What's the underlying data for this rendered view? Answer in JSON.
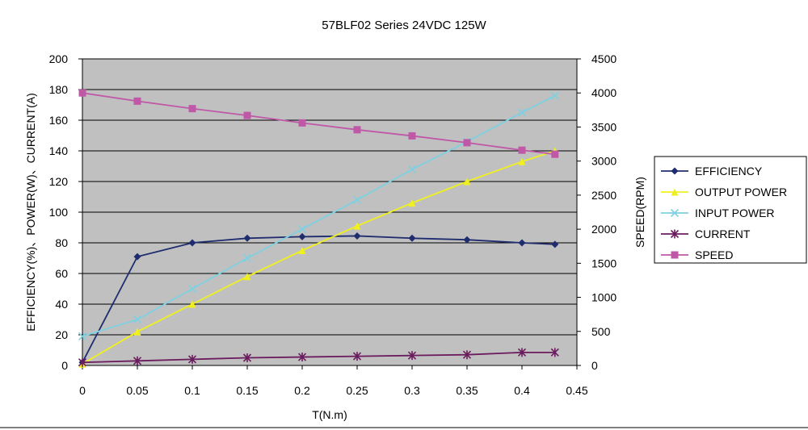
{
  "chart_data": {
    "type": "line",
    "title": "57BLF02 Series 24VDC 125W",
    "xlabel": "T(N.m)",
    "ylabel_left": "EFFICIENCY(%)、POWER(W)、CURRENT(A)",
    "ylabel_right": "SPEED(RPM)",
    "xlim": [
      0,
      0.45
    ],
    "ylim_left": [
      0,
      200
    ],
    "ylim_right": [
      0,
      4500
    ],
    "x_ticks": [
      "0",
      "0.05",
      "0.1",
      "0.15",
      "0.2",
      "0.25",
      "0.3",
      "0.35",
      "0.4",
      "0.45"
    ],
    "y_ticks_left": [
      "0",
      "20",
      "40",
      "60",
      "80",
      "100",
      "120",
      "140",
      "160",
      "180",
      "200"
    ],
    "y_ticks_right": [
      "0",
      "500",
      "1000",
      "1500",
      "2000",
      "2500",
      "3000",
      "3500",
      "4000",
      "4500"
    ],
    "grid": true,
    "legend_position": "right",
    "series": [
      {
        "name": "EFFICIENCY",
        "axis": "left",
        "marker": "diamond",
        "color": "#1f2d6e",
        "points": [
          [
            0,
            2
          ],
          [
            0.05,
            71
          ],
          [
            0.1,
            80
          ],
          [
            0.15,
            83
          ],
          [
            0.2,
            84
          ],
          [
            0.25,
            84.5
          ],
          [
            0.3,
            83
          ],
          [
            0.35,
            82
          ],
          [
            0.4,
            80
          ],
          [
            0.43,
            79
          ]
        ]
      },
      {
        "name": "OUTPUT POWER",
        "axis": "left",
        "marker": "triangle",
        "color": "#f0f020",
        "points": [
          [
            0,
            1
          ],
          [
            0.05,
            22
          ],
          [
            0.1,
            40
          ],
          [
            0.15,
            58
          ],
          [
            0.2,
            75
          ],
          [
            0.25,
            91
          ],
          [
            0.3,
            106
          ],
          [
            0.35,
            120
          ],
          [
            0.4,
            133
          ],
          [
            0.43,
            140
          ]
        ]
      },
      {
        "name": "INPUT POWER",
        "axis": "left",
        "marker": "x",
        "color": "#7fd0e0",
        "points": [
          [
            0,
            19
          ],
          [
            0.05,
            30
          ],
          [
            0.1,
            50
          ],
          [
            0.15,
            70
          ],
          [
            0.2,
            89
          ],
          [
            0.25,
            108
          ],
          [
            0.3,
            128
          ],
          [
            0.35,
            146
          ],
          [
            0.4,
            165
          ],
          [
            0.43,
            176
          ]
        ]
      },
      {
        "name": "CURRENT",
        "axis": "left",
        "marker": "star",
        "color": "#6b1c5e",
        "points": [
          [
            0,
            2
          ],
          [
            0.05,
            3
          ],
          [
            0.1,
            4
          ],
          [
            0.15,
            5
          ],
          [
            0.2,
            5.5
          ],
          [
            0.25,
            6
          ],
          [
            0.3,
            6.5
          ],
          [
            0.35,
            7
          ],
          [
            0.4,
            8.5
          ],
          [
            0.43,
            8.5
          ]
        ]
      },
      {
        "name": "SPEED",
        "axis": "right",
        "marker": "square",
        "color": "#c058a8",
        "points": [
          [
            0,
            4000
          ],
          [
            0.05,
            3880
          ],
          [
            0.1,
            3770
          ],
          [
            0.15,
            3670
          ],
          [
            0.2,
            3560
          ],
          [
            0.25,
            3460
          ],
          [
            0.3,
            3370
          ],
          [
            0.35,
            3270
          ],
          [
            0.4,
            3160
          ],
          [
            0.43,
            3100
          ]
        ]
      }
    ]
  }
}
